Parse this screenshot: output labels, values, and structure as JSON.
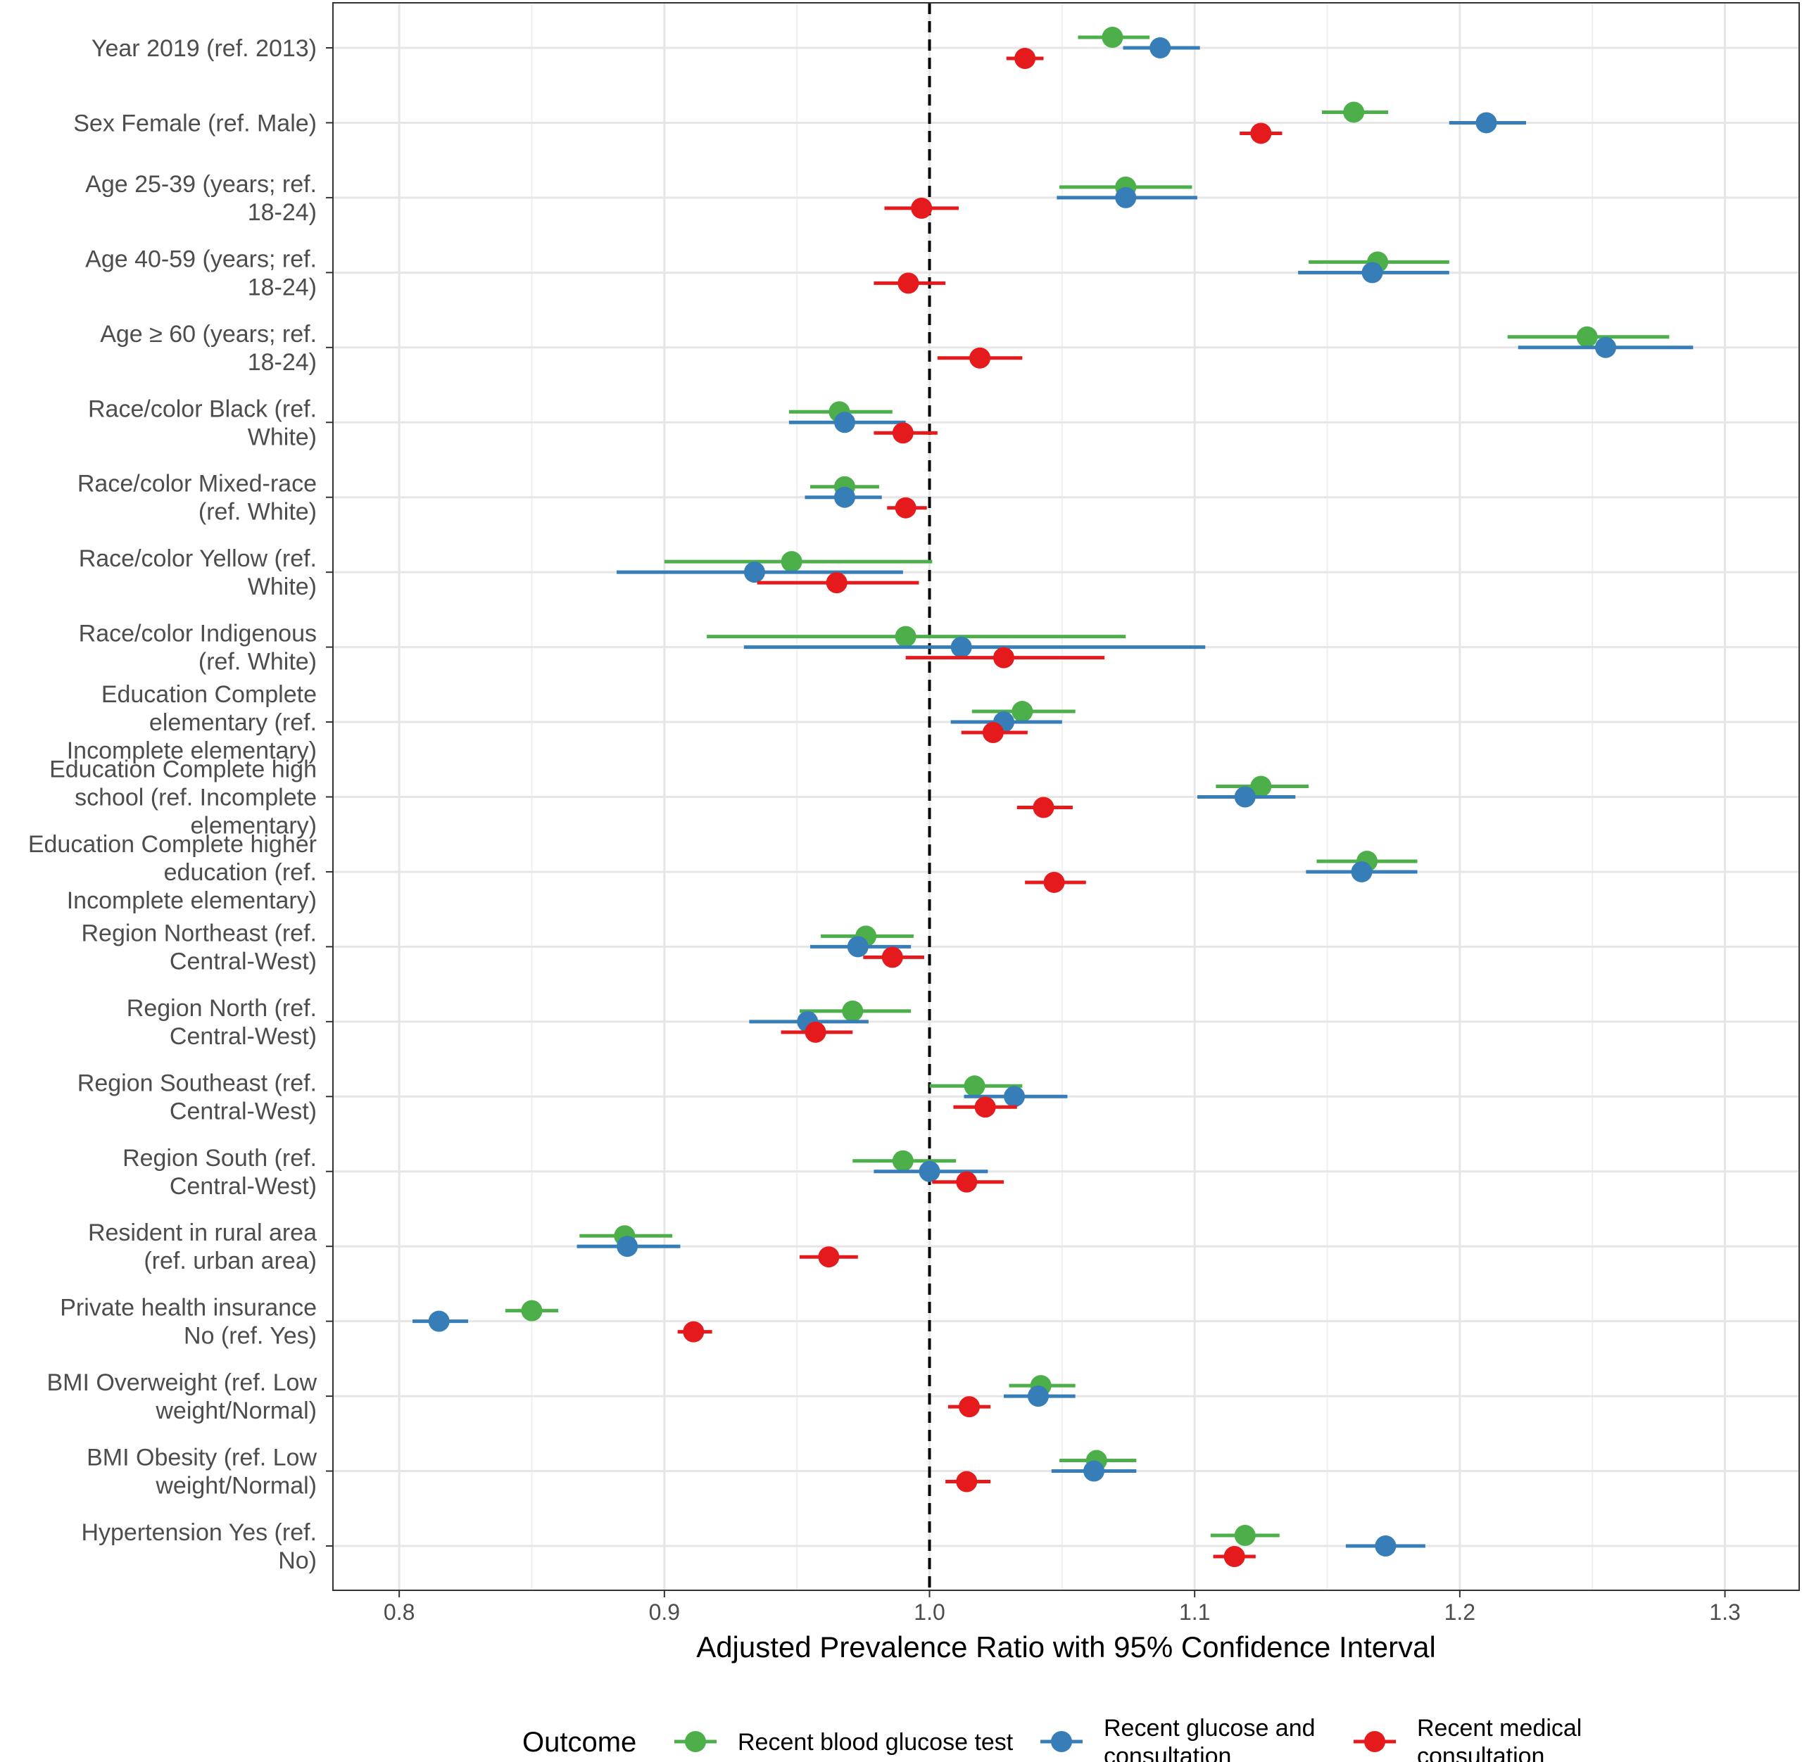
{
  "chart_data": {
    "type": "forest",
    "xlabel": "Adjusted Prevalence Ratio with 95% Confidence Interval",
    "xlim": [
      0.775,
      1.328
    ],
    "xticks": [
      0.8,
      0.9,
      1.0,
      1.1,
      1.2,
      1.3
    ],
    "xtick_labels": [
      "0.8",
      "0.9",
      "1.0",
      "1.1",
      "1.2",
      "1.3"
    ],
    "reference_line": 1.0,
    "grid": true,
    "legend": {
      "title": "Outcome",
      "position": "bottom",
      "entries": [
        {
          "key": "glucose",
          "lines": [
            "Recent blood glucose test"
          ]
        },
        {
          "key": "both",
          "lines": [
            "Recent glucose and",
            "consultation"
          ]
        },
        {
          "key": "medical",
          "lines": [
            "Recent medical",
            "consultation"
          ]
        }
      ]
    },
    "colors": {
      "glucose": "#4daf4a",
      "both": "#377eb8",
      "medical": "#e41a1c"
    },
    "series_order": [
      "glucose",
      "both",
      "medical"
    ],
    "categories": [
      {
        "lines": [
          "Year 2019 (ref. 2013)"
        ],
        "glucose": [
          1.069,
          1.056,
          1.083
        ],
        "both": [
          1.087,
          1.073,
          1.102
        ],
        "medical": [
          1.036,
          1.029,
          1.043
        ]
      },
      {
        "lines": [
          "Sex Female (ref. Male)"
        ],
        "glucose": [
          1.16,
          1.148,
          1.173
        ],
        "both": [
          1.21,
          1.196,
          1.225
        ],
        "medical": [
          1.125,
          1.117,
          1.133
        ]
      },
      {
        "lines": [
          "Age 25-39 (years; ref.",
          "18-24)"
        ],
        "glucose": [
          1.074,
          1.049,
          1.099
        ],
        "both": [
          1.074,
          1.048,
          1.101
        ],
        "medical": [
          0.997,
          0.983,
          1.011
        ]
      },
      {
        "lines": [
          "Age 40-59 (years; ref.",
          "18-24)"
        ],
        "glucose": [
          1.169,
          1.143,
          1.196
        ],
        "both": [
          1.167,
          1.139,
          1.196
        ],
        "medical": [
          0.992,
          0.979,
          1.006
        ]
      },
      {
        "lines": [
          "Age ≥ 60 (years; ref.",
          "18-24)"
        ],
        "glucose": [
          1.248,
          1.218,
          1.279
        ],
        "both": [
          1.255,
          1.222,
          1.288
        ],
        "medical": [
          1.019,
          1.003,
          1.035
        ]
      },
      {
        "lines": [
          "Race/color Black (ref.",
          "White)"
        ],
        "glucose": [
          0.966,
          0.947,
          0.986
        ],
        "both": [
          0.968,
          0.947,
          0.991
        ],
        "medical": [
          0.99,
          0.979,
          1.003
        ]
      },
      {
        "lines": [
          "Race/color Mixed-race",
          "(ref. White)"
        ],
        "glucose": [
          0.968,
          0.955,
          0.981
        ],
        "both": [
          0.968,
          0.953,
          0.982
        ],
        "medical": [
          0.991,
          0.984,
          0.999
        ]
      },
      {
        "lines": [
          "Race/color Yellow (ref.",
          "White)"
        ],
        "glucose": [
          0.948,
          0.9,
          1.001
        ],
        "both": [
          0.934,
          0.882,
          0.99
        ],
        "medical": [
          0.965,
          0.935,
          0.996
        ]
      },
      {
        "lines": [
          "Race/color Indigenous",
          "(ref. White)"
        ],
        "glucose": [
          0.991,
          0.916,
          1.074
        ],
        "both": [
          1.012,
          0.93,
          1.104
        ],
        "medical": [
          1.028,
          0.991,
          1.066
        ]
      },
      {
        "lines": [
          "Education Complete",
          "elementary (ref.",
          "Incomplete elementary)"
        ],
        "glucose": [
          1.035,
          1.016,
          1.055
        ],
        "both": [
          1.028,
          1.008,
          1.05
        ],
        "medical": [
          1.024,
          1.012,
          1.037
        ]
      },
      {
        "lines": [
          "Education Complete high",
          "school (ref. Incomplete",
          "elementary)"
        ],
        "glucose": [
          1.125,
          1.108,
          1.143
        ],
        "both": [
          1.119,
          1.101,
          1.138
        ],
        "medical": [
          1.043,
          1.033,
          1.054
        ]
      },
      {
        "lines": [
          "Education Complete higher",
          "education (ref.",
          "Incomplete elementary)"
        ],
        "glucose": [
          1.165,
          1.146,
          1.184
        ],
        "both": [
          1.163,
          1.142,
          1.184
        ],
        "medical": [
          1.047,
          1.036,
          1.059
        ]
      },
      {
        "lines": [
          "Region Northeast (ref.",
          "Central-West)"
        ],
        "glucose": [
          0.976,
          0.959,
          0.994
        ],
        "both": [
          0.973,
          0.955,
          0.993
        ],
        "medical": [
          0.986,
          0.975,
          0.998
        ]
      },
      {
        "lines": [
          "Region North (ref.",
          "Central-West)"
        ],
        "glucose": [
          0.971,
          0.951,
          0.993
        ],
        "both": [
          0.954,
          0.932,
          0.977
        ],
        "medical": [
          0.957,
          0.944,
          0.971
        ]
      },
      {
        "lines": [
          "Region Southeast (ref.",
          "Central-West)"
        ],
        "glucose": [
          1.017,
          1.0,
          1.035
        ],
        "both": [
          1.032,
          1.013,
          1.052
        ],
        "medical": [
          1.021,
          1.009,
          1.033
        ]
      },
      {
        "lines": [
          "Region South (ref.",
          "Central-West)"
        ],
        "glucose": [
          0.99,
          0.971,
          1.01
        ],
        "both": [
          1.0,
          0.979,
          1.022
        ],
        "medical": [
          1.014,
          1.001,
          1.028
        ]
      },
      {
        "lines": [
          "Resident in rural area",
          "(ref. urban area)"
        ],
        "glucose": [
          0.885,
          0.868,
          0.903
        ],
        "both": [
          0.886,
          0.867,
          0.906
        ],
        "medical": [
          0.962,
          0.951,
          0.973
        ]
      },
      {
        "lines": [
          "Private health insurance",
          "No (ref. Yes)"
        ],
        "glucose": [
          0.85,
          0.84,
          0.86
        ],
        "both": [
          0.815,
          0.805,
          0.826
        ],
        "medical": [
          0.911,
          0.905,
          0.918
        ]
      },
      {
        "lines": [
          "BMI Overweight (ref. Low",
          "weight/Normal)"
        ],
        "glucose": [
          1.042,
          1.03,
          1.055
        ],
        "both": [
          1.041,
          1.028,
          1.055
        ],
        "medical": [
          1.015,
          1.007,
          1.023
        ]
      },
      {
        "lines": [
          "BMI Obesity (ref. Low",
          "weight/Normal)"
        ],
        "glucose": [
          1.063,
          1.049,
          1.078
        ],
        "both": [
          1.062,
          1.046,
          1.078
        ],
        "medical": [
          1.014,
          1.006,
          1.023
        ]
      },
      {
        "lines": [
          "Hypertension Yes (ref.",
          "No)"
        ],
        "glucose": [
          1.119,
          1.106,
          1.132
        ],
        "both": [
          1.172,
          1.157,
          1.187
        ],
        "medical": [
          1.115,
          1.107,
          1.123
        ]
      }
    ]
  }
}
